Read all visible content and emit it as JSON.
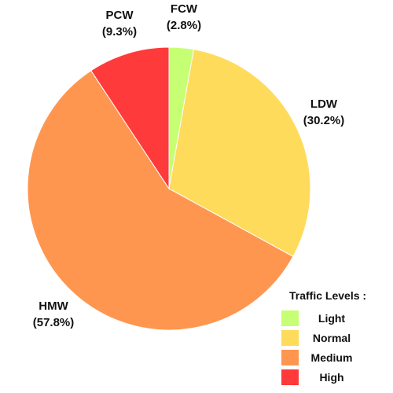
{
  "chart_data": {
    "type": "pie",
    "slices": [
      {
        "name": "FCW",
        "value": 2.8,
        "pct_label": "(2.8%)",
        "color": "#c6ff73"
      },
      {
        "name": "LDW",
        "value": 30.2,
        "pct_label": "(30.2%)",
        "color": "#ffdb5c"
      },
      {
        "name": "HMW",
        "value": 57.8,
        "pct_label": "(57.8%)",
        "color": "#ff964f"
      },
      {
        "name": "PCW",
        "value": 9.3,
        "pct_label": "(9.3%)",
        "color": "#ff3a3a"
      }
    ],
    "start": "12 o'clock",
    "direction": "clockwise",
    "legend": {
      "title": "Traffic Levels :",
      "placement": "bottom-right",
      "items": [
        {
          "label": "Light",
          "color": "#c6ff73"
        },
        {
          "label": "Normal",
          "color": "#ffdb5c"
        },
        {
          "label": "Medium",
          "color": "#ff964f"
        },
        {
          "label": "High",
          "color": "#ff3a3a"
        }
      ]
    }
  }
}
